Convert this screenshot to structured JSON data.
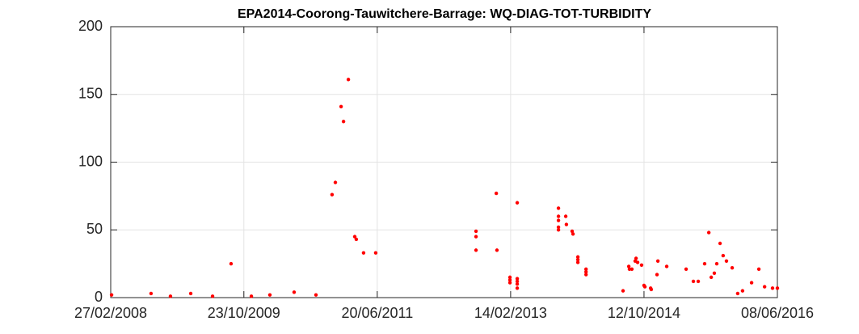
{
  "chart_data": {
    "type": "scatter",
    "title": "EPA2014-Coorong-Tauwitchere-Barrage: WQ-DIAG-TOT-TURBIDITY",
    "color": "#ff0000",
    "grid": true,
    "x": [
      "2008-03-02",
      "2008-08-28",
      "2008-11-24",
      "2009-02-24",
      "2009-06-03",
      "2009-08-26",
      "2009-11-26",
      "2010-02-18",
      "2010-06-08",
      "2010-09-15",
      "2010-11-27",
      "2010-12-12",
      "2011-01-07",
      "2011-01-18",
      "2011-02-09",
      "2011-03-10",
      "2011-03-17",
      "2011-04-19",
      "2011-06-13",
      "2012-09-10",
      "2012-09-10",
      "2012-09-10",
      "2012-12-11",
      "2012-12-14",
      "2013-02-11",
      "2013-02-11",
      "2013-02-11",
      "2013-03-16",
      "2013-03-16",
      "2013-03-16",
      "2013-03-16",
      "2013-03-16",
      "2013-09-19",
      "2013-09-19",
      "2013-09-19",
      "2013-09-19",
      "2013-09-19",
      "2013-10-22",
      "2013-10-25",
      "2013-11-20",
      "2013-11-24",
      "2013-12-16",
      "2013-12-16",
      "2013-12-16",
      "2014-01-22",
      "2014-01-22",
      "2014-01-22",
      "2014-07-09",
      "2014-08-04",
      "2014-08-07",
      "2014-08-18",
      "2014-09-02",
      "2014-09-06",
      "2014-09-13",
      "2014-10-01",
      "2014-10-12",
      "2014-10-16",
      "2014-11-11",
      "2014-11-14",
      "2014-12-10",
      "2014-12-14",
      "2015-01-23",
      "2015-04-21",
      "2015-05-24",
      "2015-06-15",
      "2015-07-14",
      "2015-08-02",
      "2015-08-13",
      "2015-08-27",
      "2015-09-07",
      "2015-09-22",
      "2015-10-06",
      "2015-10-21",
      "2015-11-16",
      "2015-12-11",
      "2016-01-02",
      "2016-02-12",
      "2016-03-16",
      "2016-04-11",
      "2016-05-17",
      "2016-06-08"
    ],
    "values": [
      2,
      3,
      1,
      3,
      1,
      25,
      1,
      2,
      4,
      2,
      76,
      85,
      141,
      130,
      161,
      45,
      43,
      33,
      33,
      49,
      45,
      35,
      77,
      35,
      15,
      13,
      11,
      70,
      14,
      12,
      10,
      7,
      66,
      60,
      57,
      52,
      50,
      60,
      54,
      49,
      47,
      30,
      28,
      26,
      21,
      19,
      17,
      5,
      23,
      21,
      21,
      27,
      29,
      26,
      24,
      9,
      8,
      7,
      6,
      17,
      27,
      23,
      21,
      12,
      12,
      25,
      48,
      15,
      18,
      25,
      40,
      31,
      27,
      22,
      3,
      5,
      11,
      21,
      8,
      7,
      7
    ],
    "xlim": [
      "2008-02-27",
      "2016-06-08"
    ],
    "xticks": [
      {
        "value": "2008-02-27",
        "label": "27/02/2008"
      },
      {
        "value": "2009-10-23",
        "label": "23/10/2009"
      },
      {
        "value": "2011-06-20",
        "label": "20/06/2011"
      },
      {
        "value": "2013-02-14",
        "label": "14/02/2013"
      },
      {
        "value": "2014-10-12",
        "label": "12/10/2014"
      },
      {
        "value": "2016-06-08",
        "label": "08/06/2016"
      }
    ],
    "ylim": [
      0,
      200
    ],
    "yticks": [
      0,
      50,
      100,
      150,
      200
    ]
  }
}
